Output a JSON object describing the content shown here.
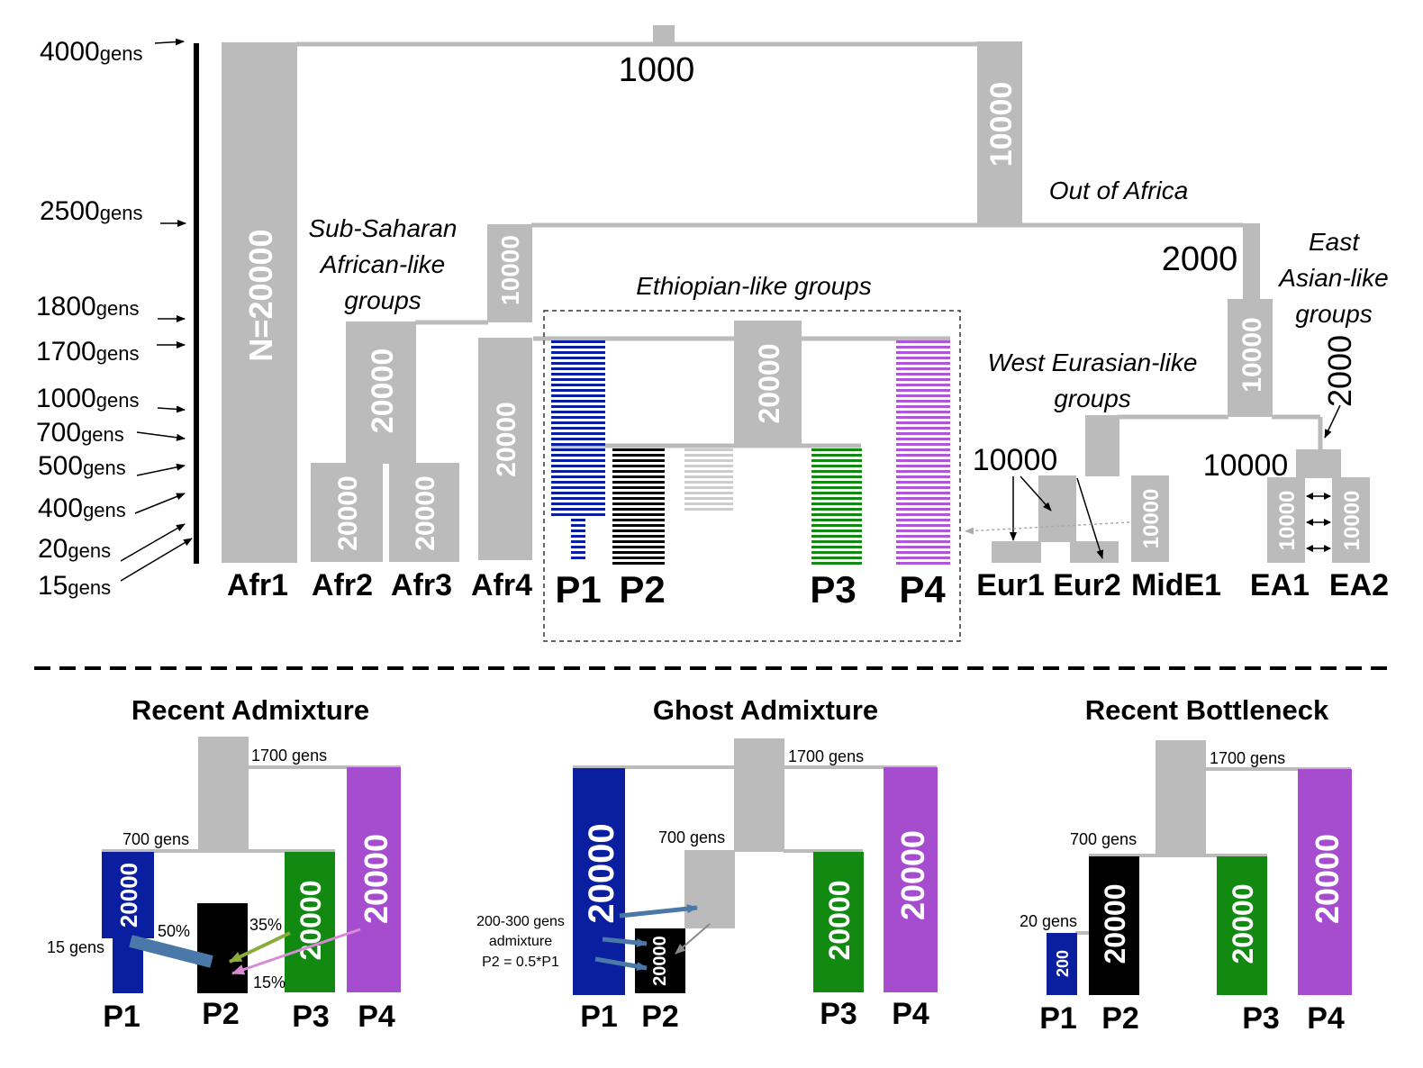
{
  "colors": {
    "gray": "#bbbbbb",
    "blue": "#0a1fa0",
    "black": "#000000",
    "green": "#128a12",
    "purple": "#a64ccf",
    "arrow_blue": "#4a78a8",
    "arrow_olive": "#8bab3c",
    "arrow_pink": "#d98ad6"
  },
  "time_axis": {
    "labels": [
      {
        "num": "4000",
        "unit": "gens"
      },
      {
        "num": "2500",
        "unit": "gens"
      },
      {
        "num": "1800",
        "unit": "gens"
      },
      {
        "num": "1700",
        "unit": "gens"
      },
      {
        "num": "1000",
        "unit": "gens"
      },
      {
        "num": "700",
        "unit": "gens"
      },
      {
        "num": "500",
        "unit": "gens"
      },
      {
        "num": "400",
        "unit": "gens"
      },
      {
        "num": "20",
        "unit": "gens"
      },
      {
        "num": "15",
        "unit": "gens"
      }
    ]
  },
  "main_tree": {
    "root_size": "1000",
    "afr1_size": "N=20000",
    "ooa_size": "10000",
    "ooa_label": "Out of Africa",
    "ooa2_size": "2000",
    "ea_root_size": "10000",
    "ea_bottleneck_size": "2000",
    "afr_root_size": "10000",
    "afr23_size": "20000",
    "afr2_size": "20000",
    "afr3_size": "20000",
    "afr4_size": "20000",
    "eth_size": "20000",
    "eur_found_size": "10000",
    "mide_size": "10000",
    "ea_split_size": "10000",
    "ea1_size": "10000",
    "ea2_size": "10000",
    "group_labels": {
      "subsaharan": [
        "Sub-Saharan",
        "African-like",
        "groups"
      ],
      "ethiopian": "Ethiopian-like groups",
      "westeurasian": [
        "West Eurasian-like",
        "groups"
      ],
      "eastasian": [
        "East",
        "Asian-like",
        "groups"
      ]
    },
    "populations": [
      "Afr1",
      "Afr2",
      "Afr3",
      "Afr4",
      "P1",
      "P2",
      "P3",
      "P4",
      "Eur1",
      "Eur2",
      "MidE1",
      "EA1",
      "EA2"
    ]
  },
  "panels": {
    "recent_admixture": {
      "title": "Recent Admixture",
      "t1700": "1700 gens",
      "t700": "700 gens",
      "t15": "15 gens",
      "p1_size": "20000",
      "p3_size": "20000",
      "p4_size": "20000",
      "pct_p1": "50%",
      "pct_p3": "35%",
      "pct_p4": "15%",
      "pops": [
        "P1",
        "P2",
        "P3",
        "P4"
      ]
    },
    "ghost_admixture": {
      "title": "Ghost Admixture",
      "t1700": "1700 gens",
      "t700": "700 gens",
      "note": [
        "200-300 gens",
        "admixture",
        "P2 = 0.5*P1"
      ],
      "p1_size": "20000",
      "p2_size": "20000",
      "p3_size": "20000",
      "p4_size": "20000",
      "pops": [
        "P1",
        "P2",
        "P3",
        "P4"
      ]
    },
    "recent_bottleneck": {
      "title": "Recent Bottleneck",
      "t1700": "1700 gens",
      "t700": "700 gens",
      "t20": "20 gens",
      "p1_size": "200",
      "p2_size": "20000",
      "p3_size": "20000",
      "p4_size": "20000",
      "pops": [
        "P1",
        "P2",
        "P3",
        "P4"
      ]
    }
  }
}
